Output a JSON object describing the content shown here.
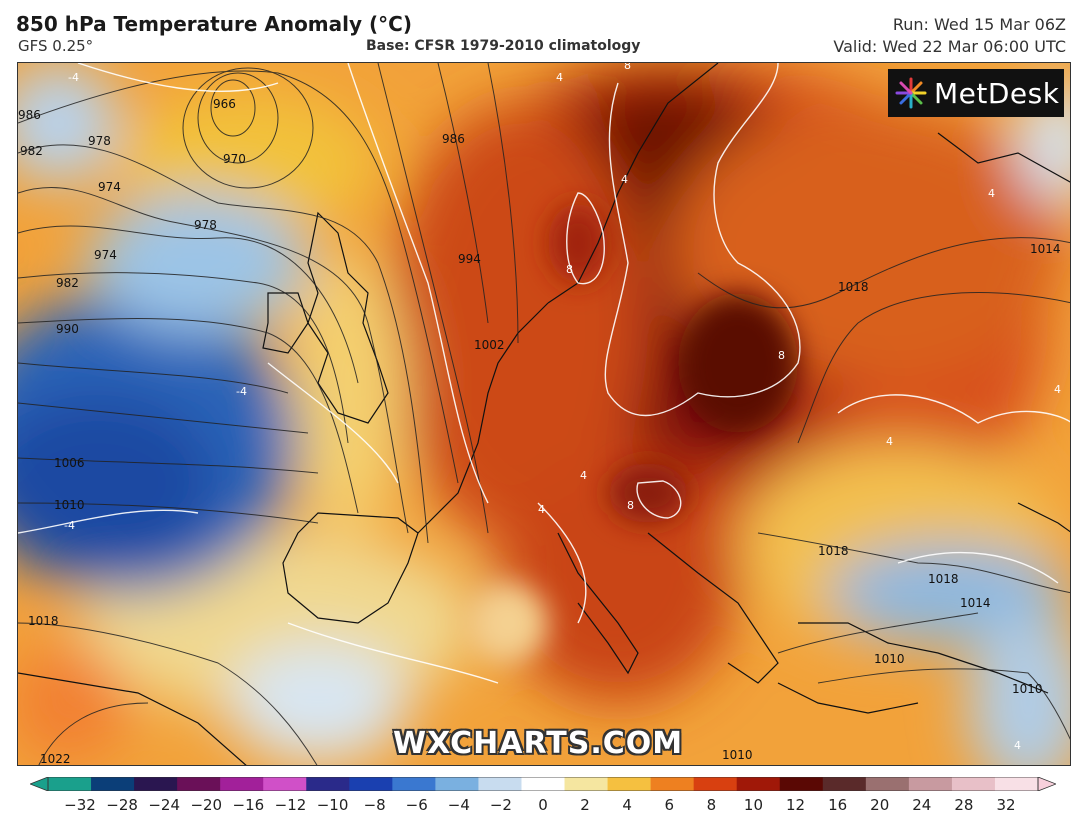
{
  "header": {
    "title": "850 hPa Temperature Anomaly (°C)",
    "model": "GFS 0.25°",
    "base": "Base: CFSR 1979-2010 climatology",
    "run": "Run: Wed 15 Mar 06Z",
    "valid": "Valid: Wed 22 Mar 06:00 UTC"
  },
  "branding": {
    "logo_text": "MetDesk",
    "logo_icon": "metdesk-starburst-icon",
    "watermark": "WXCHARTS.COM"
  },
  "map": {
    "region": "Europe and North Atlantic",
    "isobar_labels": [
      "986",
      "982",
      "978",
      "974",
      "974",
      "970",
      "966",
      "978",
      "982",
      "990",
      "1006",
      "1010",
      "1018",
      "1022",
      "986",
      "994",
      "1002",
      "1014",
      "1018",
      "1018",
      "1018",
      "1014",
      "1010",
      "1010",
      "1010"
    ],
    "anomaly_contour_labels": [
      "4",
      "8",
      "8",
      "8",
      "8",
      "4",
      "4",
      "4",
      "4",
      "4",
      "4",
      "4",
      "-4",
      "-4",
      "-4"
    ]
  },
  "colorbar": {
    "ticks": [
      "−32",
      "−28",
      "−24",
      "−20",
      "−16",
      "−12",
      "−10",
      "−8",
      "−6",
      "−4",
      "−2",
      "0",
      "2",
      "4",
      "6",
      "8",
      "10",
      "12",
      "16",
      "20",
      "24",
      "28",
      "32"
    ],
    "colors": [
      "#1aa08c",
      "#0b3e78",
      "#2a1650",
      "#6a1058",
      "#a2209a",
      "#d050c8",
      "#2a2a8a",
      "#1a40b0",
      "#3a78d0",
      "#7ab0e0",
      "#c8dcef",
      "#ffffff",
      "#f5e6a0",
      "#f5c040",
      "#ee8020",
      "#d84010",
      "#a01808",
      "#5a0804",
      "#5a2a2a",
      "#9a7070",
      "#c89aa0",
      "#e8c0c8",
      "#f8e0e6"
    ]
  }
}
